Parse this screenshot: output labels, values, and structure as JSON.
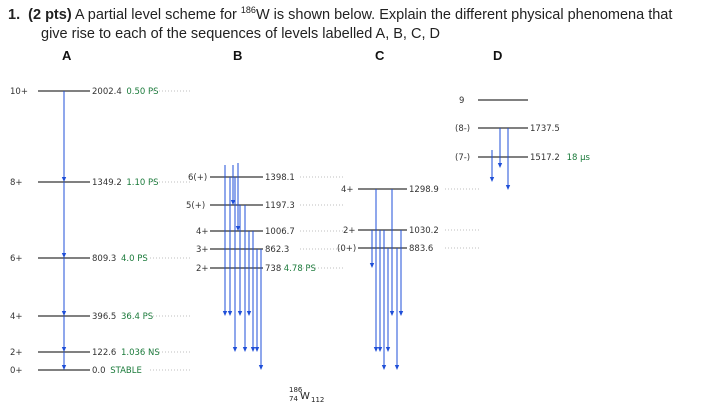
{
  "question": {
    "number": "1.",
    "points": "(2 pts)",
    "text_before_sup": " A partial level scheme for ",
    "isotope_mass": "186",
    "text_after_sup": "W is shown below. Explain the different physical phenomena that",
    "line2": "give rise to each of the sequences of levels labelled A, B, C, D"
  },
  "columns": [
    "A",
    "B",
    "C",
    "D"
  ],
  "band_A": {
    "levels": [
      {
        "spin": "10+",
        "energy": "2002.4",
        "halflife": "0.50 PS"
      },
      {
        "spin": "8+",
        "energy": "1349.2",
        "halflife": "1.10 PS"
      },
      {
        "spin": "6+",
        "energy": "809.3",
        "halflife": "4.0 PS"
      },
      {
        "spin": "4+",
        "energy": "396.5",
        "halflife": "36.4 PS"
      },
      {
        "spin": "2+",
        "energy": "122.6",
        "halflife": "1.036 NS"
      },
      {
        "spin": "0+",
        "energy": "0.0",
        "halflife": "STABLE"
      }
    ]
  },
  "band_B": {
    "levels": [
      {
        "spin": "6(+)",
        "energy": "1398.1",
        "halflife": ""
      },
      {
        "spin": "5(+)",
        "energy": "1197.3",
        "halflife": ""
      },
      {
        "spin": "4+",
        "energy": "1006.7",
        "halflife": ""
      },
      {
        "spin": "3+",
        "energy": "862.3",
        "halflife": ""
      },
      {
        "spin": "2+",
        "energy": "738",
        "halflife": "4.78 PS"
      }
    ]
  },
  "band_C": {
    "levels": [
      {
        "spin": "4+",
        "energy": "1298.9",
        "halflife": ""
      },
      {
        "spin": "2+",
        "energy": "1030.2",
        "halflife": ""
      },
      {
        "spin": "(0+)",
        "energy": "883.6",
        "halflife": ""
      }
    ]
  },
  "band_D": {
    "levels": [
      {
        "spin": "9",
        "energy": "",
        "halflife": ""
      },
      {
        "spin": "(8-)",
        "energy": "1737.5",
        "halflife": ""
      },
      {
        "spin": "(7-)",
        "energy": "1517.2",
        "halflife": "18 µs"
      }
    ]
  },
  "nucleus": {
    "mass": "186",
    "z": "74",
    "symbol": "W",
    "n": "112"
  },
  "colors": {
    "level": "#000000",
    "gamma": "#1f4fd8",
    "halflife": "#1a7a3a",
    "dotted": "#aaaaaa"
  }
}
